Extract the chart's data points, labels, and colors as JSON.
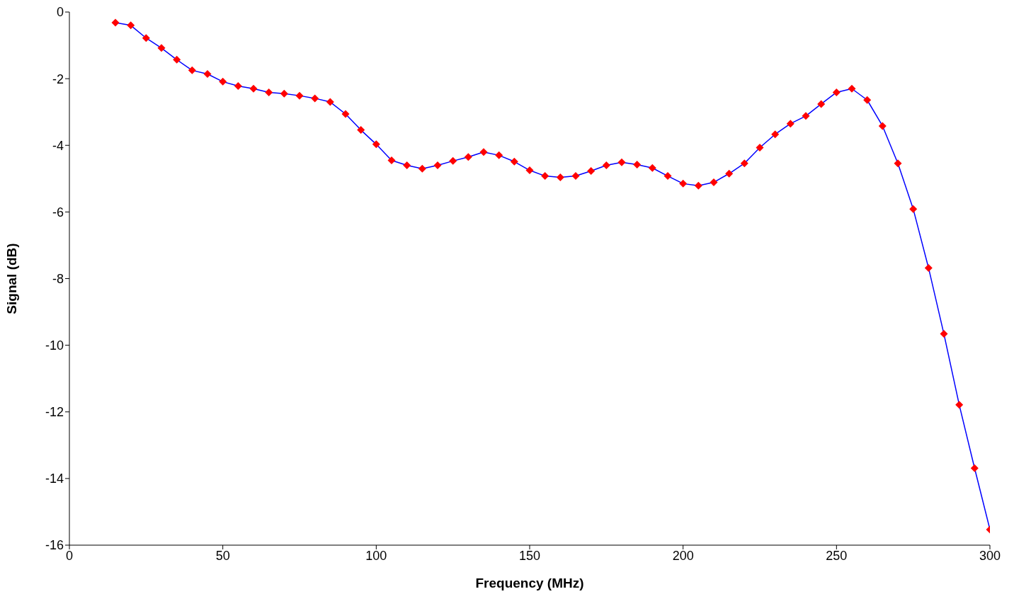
{
  "chart_data": {
    "type": "line",
    "xlabel": "Frequency (MHz)",
    "ylabel": "Signal (dB)",
    "x": [
      15,
      20,
      25,
      30,
      35,
      40,
      45,
      50,
      55,
      60,
      65,
      70,
      75,
      80,
      85,
      90,
      95,
      100,
      105,
      110,
      115,
      120,
      125,
      130,
      135,
      140,
      145,
      150,
      155,
      160,
      165,
      170,
      175,
      180,
      185,
      190,
      195,
      200,
      205,
      210,
      215,
      220,
      225,
      230,
      235,
      240,
      245,
      250,
      255,
      260,
      265,
      270,
      275,
      280,
      285,
      290,
      295,
      300
    ],
    "series": [
      {
        "color": "#0000ff",
        "colors": [
          "#ff0000",
          "#ff0000",
          "#ff0000",
          "#ff0000",
          "#ff0000",
          "#ff0000",
          "#ff0000",
          "#ff0000",
          "#ff0000",
          "#ff0000",
          "#ff0000",
          "#ff0000",
          "#ff0000",
          "#ff0000",
          "#ff0000",
          "#ff0000",
          "#ff0000",
          "#ff0000",
          "#ff0000",
          "#ff0000",
          "#ff0000",
          "#ff0000",
          "#ff0000",
          "#ff0000",
          "#ff0000",
          "#ff0000",
          "#ff0000",
          "#ff0000",
          "#ff0000",
          "#ff0000",
          "#ff0000",
          "#ff0000",
          "#ff0000",
          "#ff0000",
          "#ff0000",
          "#ff0000",
          "#ff0000",
          "#ff0000",
          "#ff0000",
          "#ff0000",
          "#ff0000",
          "#ff0000",
          "#ff0000",
          "#ff0000",
          "#ff0000",
          "#ff0000",
          "#ff0000",
          "#ff0000",
          "#ff0000",
          "#ff0000",
          "#ff0000",
          "#ff0000",
          "#ff0000",
          "#ff0000",
          "#ff0000",
          "#ff0000",
          "#ff0000",
          "#ff0000"
        ],
        "values": [
          -0.32,
          -0.4,
          -0.78,
          -1.08,
          -1.43,
          -1.75,
          -1.86,
          -2.09,
          -2.22,
          -2.3,
          -2.41,
          -2.45,
          -2.51,
          -2.59,
          -2.7,
          -3.06,
          -3.54,
          -3.97,
          -4.45,
          -4.6,
          -4.7,
          -4.6,
          -4.47,
          -4.35,
          -4.2,
          -4.3,
          -4.49,
          -4.75,
          -4.92,
          -4.96,
          -4.92,
          -4.77,
          -4.6,
          -4.51,
          -4.58,
          -4.68,
          -4.92,
          -5.15,
          -5.21,
          -5.11,
          -4.85,
          -4.54,
          -4.07,
          -3.67,
          -3.35,
          -3.12,
          -2.76,
          -2.41,
          -2.3,
          -2.64,
          -3.42,
          -4.54,
          -5.91,
          -7.68,
          -9.66,
          -11.79,
          -13.69,
          -15.53
        ]
      }
    ],
    "xlim": [
      0,
      300
    ],
    "xticks": [
      0,
      50,
      100,
      150,
      200,
      250,
      300
    ],
    "ylim": [
      -16,
      0
    ],
    "yticks": [
      -16,
      -14,
      -12,
      -10,
      -8,
      -6,
      -4,
      -2,
      0
    ],
    "grid": false,
    "legend": false,
    "marker": "diamond",
    "line_style": "solid"
  }
}
